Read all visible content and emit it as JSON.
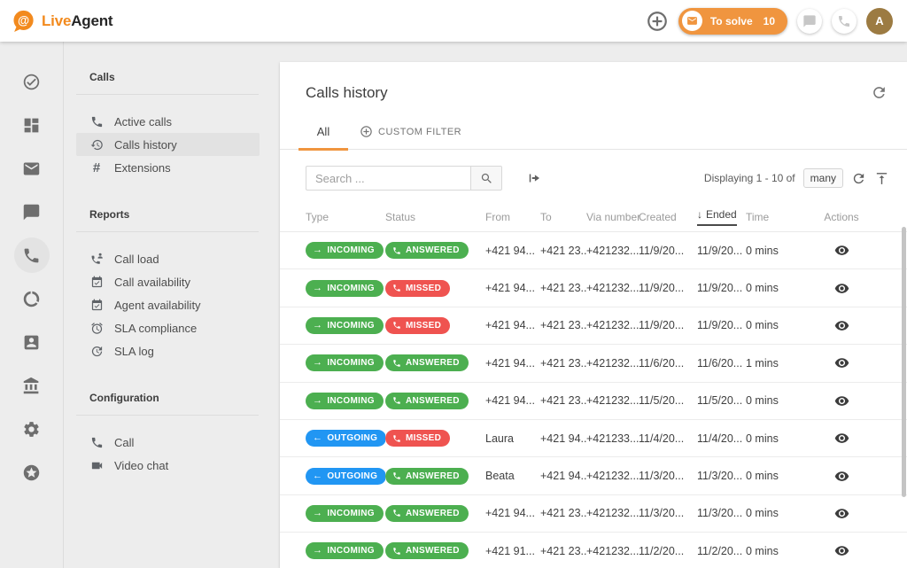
{
  "header": {
    "brand": {
      "symbol": "@",
      "live": "Live",
      "agent": "Agent"
    },
    "to_solve": {
      "label": "To solve",
      "count": "10"
    },
    "avatar_initial": "A"
  },
  "colors": {
    "accent_orange": "#F0953F",
    "badge_green": "#4CAF50",
    "badge_red": "#EF5350",
    "badge_blue": "#2196F3",
    "avatar_brown": "#9C7B42"
  },
  "nav_rail": {
    "items": [
      {
        "name": "tickets",
        "icon": "check-circle",
        "active": false
      },
      {
        "name": "dashboard",
        "icon": "dashboard",
        "active": false
      },
      {
        "name": "mail",
        "icon": "mail",
        "active": false
      },
      {
        "name": "chats",
        "icon": "chat",
        "active": false
      },
      {
        "name": "calls",
        "icon": "phone",
        "active": true
      },
      {
        "name": "usage",
        "icon": "data-usage",
        "active": false
      },
      {
        "name": "contacts",
        "icon": "account-box",
        "active": false
      },
      {
        "name": "company",
        "icon": "bank",
        "active": false
      },
      {
        "name": "settings",
        "icon": "gear",
        "active": false
      },
      {
        "name": "upgrade",
        "icon": "star-circle",
        "active": false
      }
    ]
  },
  "sidebar": {
    "sections": [
      {
        "title": "Calls",
        "items": [
          {
            "icon": "phone",
            "label": "Active calls",
            "active": false
          },
          {
            "icon": "history",
            "label": "Calls history",
            "active": true
          },
          {
            "icon": "hash",
            "label": "Extensions",
            "active": false
          }
        ]
      },
      {
        "title": "Reports",
        "items": [
          {
            "icon": "call-load",
            "label": "Call load",
            "active": false
          },
          {
            "icon": "calendar-check",
            "label": "Call availability",
            "active": false
          },
          {
            "icon": "calendar-check",
            "label": "Agent availability",
            "active": false
          },
          {
            "icon": "alarm",
            "label": "SLA compliance",
            "active": false
          },
          {
            "icon": "clock-log",
            "label": "SLA log",
            "active": false
          }
        ]
      },
      {
        "title": "Configuration",
        "items": [
          {
            "icon": "phone",
            "label": "Call",
            "active": false
          },
          {
            "icon": "video",
            "label": "Video chat",
            "active": false
          }
        ]
      }
    ]
  },
  "main": {
    "title": "Calls history",
    "tabs": {
      "all": "All",
      "custom_filter": "CUSTOM FILTER"
    },
    "toolbar": {
      "search_placeholder": "Search ...",
      "displaying": "Displaying 1 - 10 of",
      "count_chip": "many"
    },
    "table": {
      "columns": [
        "Type",
        "Status",
        "From",
        "To",
        "Via number",
        "Created",
        "Ended",
        "Time",
        "Actions"
      ],
      "sort_column": "Ended",
      "rows": [
        {
          "direction": "incoming",
          "direction_label": "INCOMING",
          "status": "answered",
          "status_label": "ANSWERED",
          "from": "+421 94...",
          "to": "+421 23...",
          "via": "+421232...",
          "created": "11/9/20...",
          "ended": "11/9/20...",
          "time": "0 mins"
        },
        {
          "direction": "incoming",
          "direction_label": "INCOMING",
          "status": "missed",
          "status_label": "MISSED",
          "from": "+421 94...",
          "to": "+421 23...",
          "via": "+421232...",
          "created": "11/9/20...",
          "ended": "11/9/20...",
          "time": "0 mins"
        },
        {
          "direction": "incoming",
          "direction_label": "INCOMING",
          "status": "missed",
          "status_label": "MISSED",
          "from": "+421 94...",
          "to": "+421 23...",
          "via": "+421232...",
          "created": "11/9/20...",
          "ended": "11/9/20...",
          "time": "0 mins"
        },
        {
          "direction": "incoming",
          "direction_label": "INCOMING",
          "status": "answered",
          "status_label": "ANSWERED",
          "from": "+421 94...",
          "to": "+421 23...",
          "via": "+421232...",
          "created": "11/6/20...",
          "ended": "11/6/20...",
          "time": "1 mins"
        },
        {
          "direction": "incoming",
          "direction_label": "INCOMING",
          "status": "answered",
          "status_label": "ANSWERED",
          "from": "+421 94...",
          "to": "+421 23...",
          "via": "+421232...",
          "created": "11/5/20...",
          "ended": "11/5/20...",
          "time": "0 mins"
        },
        {
          "direction": "outgoing",
          "direction_label": "OUTGOING",
          "status": "missed",
          "status_label": "MISSED",
          "from": "Laura",
          "to": "+421 94...",
          "via": "+421233...",
          "created": "11/4/20...",
          "ended": "11/4/20...",
          "time": "0 mins"
        },
        {
          "direction": "outgoing",
          "direction_label": "OUTGOING",
          "status": "answered",
          "status_label": "ANSWERED",
          "from": "Beata",
          "to": "+421 94...",
          "via": "+421232...",
          "created": "11/3/20...",
          "ended": "11/3/20...",
          "time": "0 mins"
        },
        {
          "direction": "incoming",
          "direction_label": "INCOMING",
          "status": "answered",
          "status_label": "ANSWERED",
          "from": "+421 94...",
          "to": "+421 23...",
          "via": "+421232...",
          "created": "11/3/20...",
          "ended": "11/3/20...",
          "time": "0 mins"
        },
        {
          "direction": "incoming",
          "direction_label": "INCOMING",
          "status": "answered",
          "status_label": "ANSWERED",
          "from": "+421 91...",
          "to": "+421 23...",
          "via": "+421232...",
          "created": "11/2/20...",
          "ended": "11/2/20...",
          "time": "0 mins"
        }
      ]
    }
  }
}
